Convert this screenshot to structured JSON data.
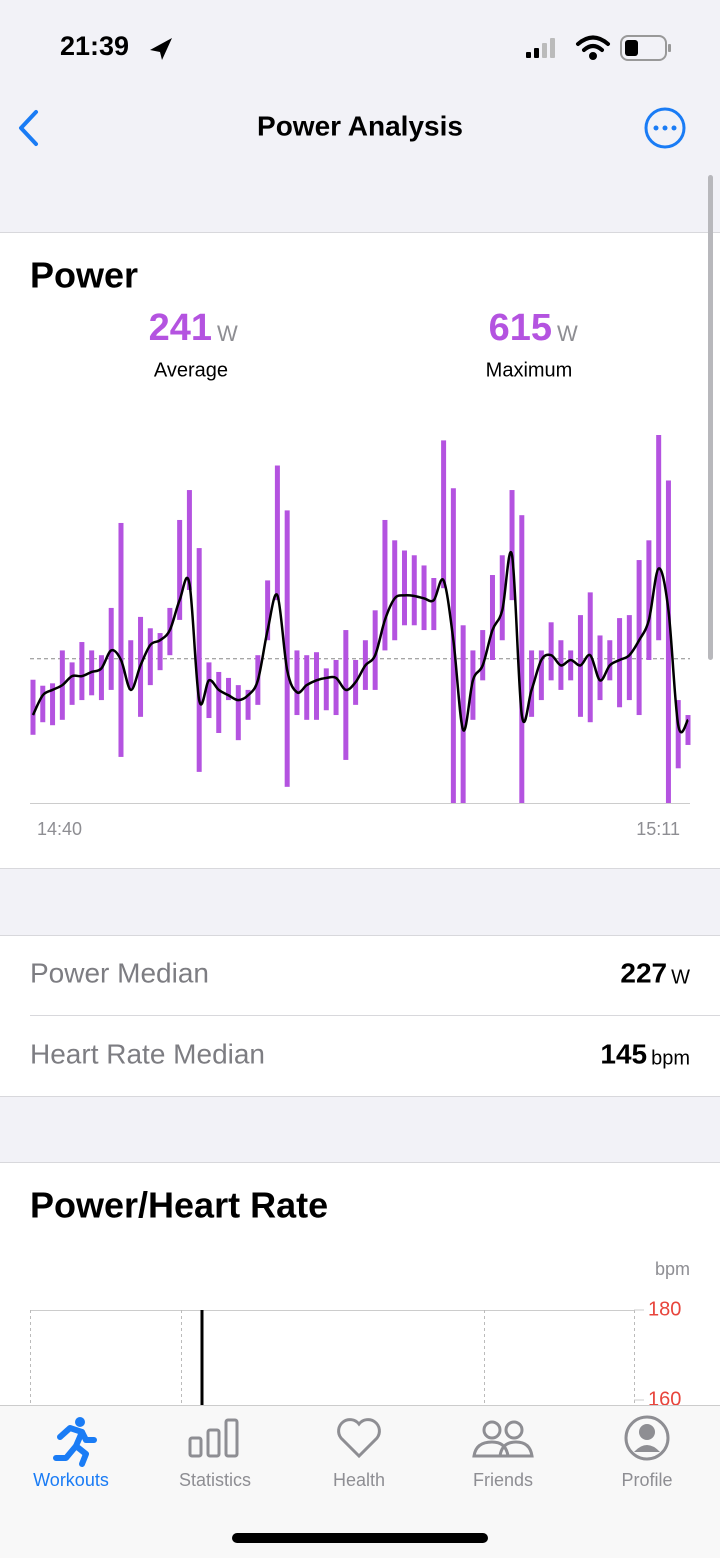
{
  "status_bar": {
    "time": "21:39"
  },
  "nav": {
    "title": "Power Analysis"
  },
  "power": {
    "title": "Power",
    "stats": [
      {
        "value": 241,
        "unit": "W",
        "label": "Average"
      },
      {
        "value": 615,
        "unit": "W",
        "label": "Maximum"
      }
    ]
  },
  "chart_data": [
    {
      "type": "range-bar",
      "color": "#b453e0",
      "ylim": [
        0,
        615
      ],
      "reference_line": 241,
      "low": [
        114,
        135,
        130,
        139,
        164,
        172,
        180,
        172,
        189,
        77,
        189,
        144,
        197,
        222,
        247,
        306,
        356,
        52,
        142,
        117,
        172,
        105,
        139,
        164,
        272,
        339,
        27,
        147,
        139,
        139,
        155,
        147,
        72,
        164,
        189,
        189,
        255,
        272,
        297,
        297,
        289,
        289,
        359,
        0,
        0,
        139,
        205,
        239,
        272,
        339,
        0,
        144,
        172,
        205,
        189,
        205,
        144,
        135,
        172,
        205,
        160,
        172,
        147,
        239,
        272,
        0,
        58,
        97
      ],
      "high": [
        206,
        196,
        200,
        255,
        235,
        269,
        255,
        247,
        326,
        468,
        272,
        311,
        292,
        284,
        326,
        473,
        523,
        426,
        235,
        219,
        209,
        197,
        189,
        247,
        372,
        564,
        489,
        255,
        247,
        252,
        225,
        239,
        289,
        239,
        272,
        322,
        473,
        439,
        422,
        414,
        397,
        376,
        606,
        526,
        297,
        255,
        289,
        381,
        414,
        523,
        481,
        255,
        255,
        302,
        272,
        255,
        314,
        352,
        280,
        272,
        309,
        314,
        406,
        439,
        615,
        539,
        172,
        147
      ],
      "line": {
        "color": "#000000",
        "values": [
          147,
          180,
          189,
          197,
          212,
          212,
          219,
          225,
          255,
          239,
          189,
          230,
          264,
          272,
          289,
          339,
          367,
          172,
          205,
          189,
          180,
          172,
          180,
          205,
          289,
          347,
          222,
          185,
          197,
          205,
          209,
          209,
          189,
          202,
          230,
          247,
          306,
          342,
          347,
          346,
          342,
          339,
          372,
          272,
          122,
          205,
          230,
          289,
          322,
          414,
          147,
          189,
          239,
          247,
          230,
          239,
          230,
          247,
          205,
          230,
          239,
          247,
          272,
          306,
          392,
          322,
          130,
          139
        ]
      },
      "x_labels": [
        "14:40",
        "15:11"
      ]
    },
    {
      "type": "scatter",
      "title": "Power/Heart Rate",
      "y_unit": "bpm",
      "ylim": [
        160,
        180
      ],
      "yticks": [
        180,
        160
      ],
      "tick_color": "#e8453c"
    }
  ],
  "rows": [
    {
      "label": "Power Median",
      "value": 227,
      "unit": "W"
    },
    {
      "label": "Heart Rate Median",
      "value": 145,
      "unit": "bpm"
    }
  ],
  "tabs": [
    "Workouts",
    "Statistics",
    "Health",
    "Friends",
    "Profile"
  ]
}
